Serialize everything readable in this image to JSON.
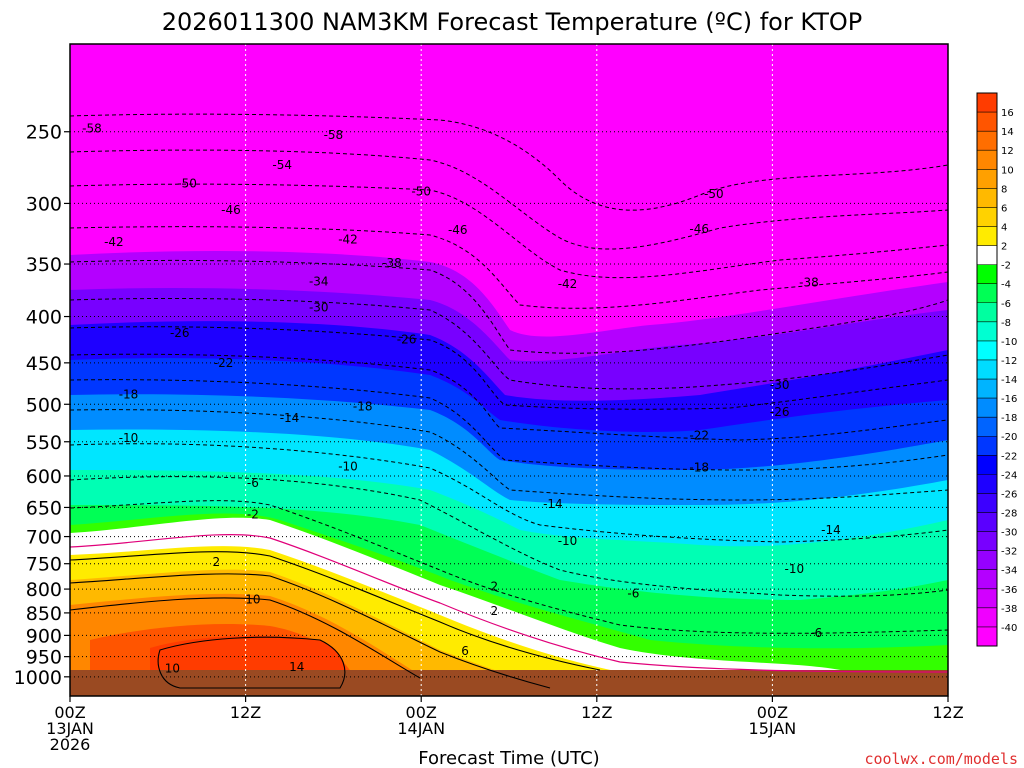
{
  "chart_data": {
    "type": "heatmap",
    "title": "2026011300 NAM3KM Forecast Temperature (ºC) for KTOP",
    "xlabel": "Forecast Time (UTC)",
    "ylabel": "",
    "credit": "coolwx.com/models",
    "x_ticks": [
      {
        "hour": 0,
        "label": "00Z",
        "sub": [
          "13JAN",
          "2026"
        ]
      },
      {
        "hour": 12,
        "label": "12Z",
        "sub": []
      },
      {
        "hour": 24,
        "label": "00Z",
        "sub": [
          "14JAN"
        ]
      },
      {
        "hour": 36,
        "label": "12Z",
        "sub": []
      },
      {
        "hour": 48,
        "label": "00Z",
        "sub": [
          "15JAN"
        ]
      },
      {
        "hour": 60,
        "label": "12Z",
        "sub": []
      }
    ],
    "xlim": [
      0,
      60
    ],
    "y_ticks": [
      250,
      300,
      350,
      400,
      450,
      500,
      550,
      600,
      650,
      700,
      750,
      800,
      850,
      900,
      950,
      1000
    ],
    "y_scale": "log-pressure",
    "ylim": [
      200,
      1050
    ],
    "colorbar": {
      "labels": [
        "16",
        "14",
        "12",
        "10",
        "8",
        "6",
        "4",
        "2",
        "-2",
        "-4",
        "-6",
        "-8",
        "-10",
        "-12",
        "-14",
        "-16",
        "-18",
        "-20",
        "-22",
        "-24",
        "-26",
        "-28",
        "-30",
        "-32",
        "-34",
        "-36",
        "-38",
        "-40"
      ],
      "colors": [
        "#ff3c00",
        "#ff5500",
        "#ff6e00",
        "#ff8700",
        "#ffa000",
        "#ffb900",
        "#ffd200",
        "#ffeb00",
        "#ffffff",
        "#00ff00",
        "#00ff55",
        "#00ffa0",
        "#00ffd2",
        "#00ffff",
        "#00dcff",
        "#00b4ff",
        "#008cff",
        "#0064ff",
        "#0037ff",
        "#0000ff",
        "#1e00ff",
        "#3c00ff",
        "#5a00ff",
        "#7800ff",
        "#9600ff",
        "#b400ff",
        "#d200ff",
        "#f000ff",
        "#ff00ff"
      ]
    },
    "contour_labels": [
      {
        "hour": 1.5,
        "p": 248,
        "text": "-58"
      },
      {
        "hour": 18,
        "p": 252,
        "text": "-58"
      },
      {
        "hour": 14.5,
        "p": 272,
        "text": "-54"
      },
      {
        "hour": 8,
        "p": 285,
        "text": "-50"
      },
      {
        "hour": 24,
        "p": 291,
        "text": "-50"
      },
      {
        "hour": 44,
        "p": 293,
        "text": "-50"
      },
      {
        "hour": 11,
        "p": 305,
        "text": "-46"
      },
      {
        "hour": 26.5,
        "p": 321,
        "text": "-46"
      },
      {
        "hour": 43,
        "p": 320,
        "text": "-46"
      },
      {
        "hour": 3,
        "p": 331,
        "text": "-42"
      },
      {
        "hour": 19,
        "p": 329,
        "text": "-42"
      },
      {
        "hour": 34,
        "p": 368,
        "text": "-42"
      },
      {
        "hour": 22,
        "p": 349,
        "text": "-38"
      },
      {
        "hour": 50.5,
        "p": 367,
        "text": "-38"
      },
      {
        "hour": 17,
        "p": 366,
        "text": "-34"
      },
      {
        "hour": 17,
        "p": 391,
        "text": "-30"
      },
      {
        "hour": 48.5,
        "p": 476,
        "text": "-30"
      },
      {
        "hour": 7.5,
        "p": 417,
        "text": "-26"
      },
      {
        "hour": 23,
        "p": 424,
        "text": "-26"
      },
      {
        "hour": 48.5,
        "p": 510,
        "text": "-26"
      },
      {
        "hour": 10.5,
        "p": 450,
        "text": "-22"
      },
      {
        "hour": 43,
        "p": 541,
        "text": "-22"
      },
      {
        "hour": 4,
        "p": 488,
        "text": "-18"
      },
      {
        "hour": 20,
        "p": 503,
        "text": "-18"
      },
      {
        "hour": 43,
        "p": 587,
        "text": "-18"
      },
      {
        "hour": 15,
        "p": 518,
        "text": "-14"
      },
      {
        "hour": 33,
        "p": 644,
        "text": "-14"
      },
      {
        "hour": 52,
        "p": 688,
        "text": "-14"
      },
      {
        "hour": 4,
        "p": 545,
        "text": "-10"
      },
      {
        "hour": 19,
        "p": 586,
        "text": "-10"
      },
      {
        "hour": 34,
        "p": 708,
        "text": "-10"
      },
      {
        "hour": 49.5,
        "p": 760,
        "text": "-10"
      },
      {
        "hour": 12.5,
        "p": 611,
        "text": "-6"
      },
      {
        "hour": 38.5,
        "p": 809,
        "text": "-6"
      },
      {
        "hour": 51,
        "p": 894,
        "text": "-6"
      },
      {
        "hour": 12.5,
        "p": 662,
        "text": "-2"
      },
      {
        "hour": 10,
        "p": 747,
        "text": "2"
      },
      {
        "hour": 29,
        "p": 795,
        "text": "2"
      },
      {
        "hour": 29,
        "p": 846,
        "text": "2"
      },
      {
        "hour": 12.5,
        "p": 822,
        "text": "10"
      },
      {
        "hour": 27,
        "p": 937,
        "text": "6"
      },
      {
        "hour": 7,
        "p": 979,
        "text": "10"
      },
      {
        "hour": 15.5,
        "p": 975,
        "text": "14"
      }
    ]
  }
}
